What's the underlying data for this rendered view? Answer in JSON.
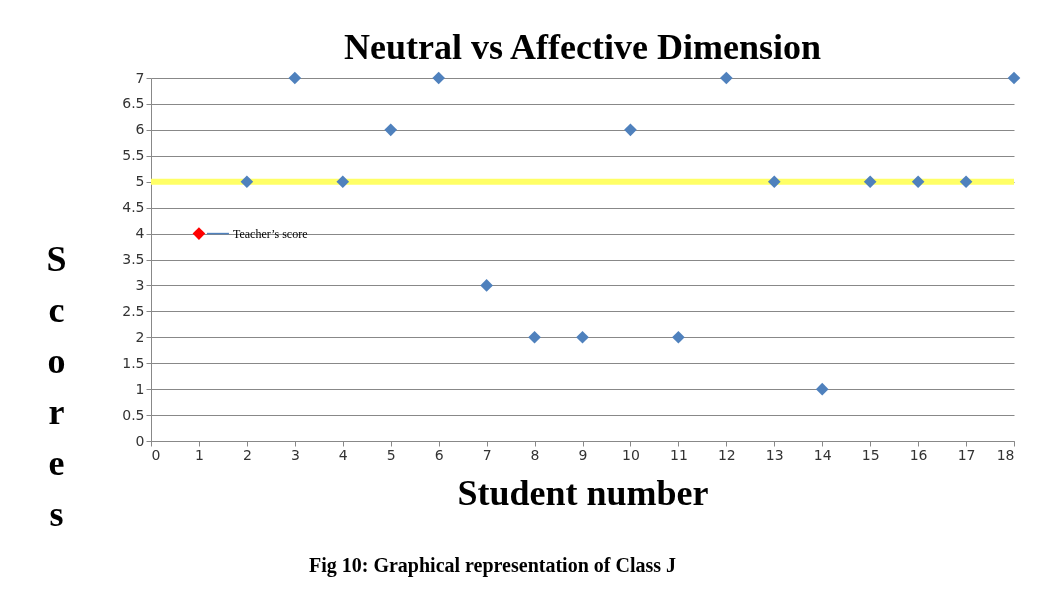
{
  "chart_data": {
    "type": "scatter",
    "title": "Neutral vs Affective Dimension",
    "xlabel": "Student number",
    "ylabel": "Scores",
    "series": [
      {
        "color": "#ff0000",
        "x": [
          1
        ],
        "values": [
          4
        ]
      },
      {
        "color": "#4f81bd",
        "x": [
          2,
          3,
          4,
          5,
          6,
          7,
          8,
          9,
          10,
          11,
          12,
          13,
          14,
          15,
          16,
          17,
          18
        ],
        "values": [
          5,
          7,
          5,
          6,
          7,
          3,
          2,
          2,
          6,
          2,
          7,
          5,
          1,
          5,
          5,
          5,
          7
        ]
      }
    ],
    "xlim": [
      0,
      18
    ],
    "xticks": [
      0,
      1,
      2,
      3,
      4,
      5,
      6,
      7,
      8,
      9,
      10,
      11,
      12,
      13,
      14,
      15,
      16,
      17,
      18
    ],
    "ylim": [
      0,
      7
    ],
    "yticks": [
      0,
      0.5,
      1,
      1.5,
      2,
      2.5,
      3,
      3.5,
      4,
      4.5,
      5,
      5.5,
      6,
      6.5,
      7
    ],
    "grid": "y",
    "marker": "diamond",
    "ref_lines": [
      {
        "axis": "y",
        "value": 5,
        "color": "#ffff66"
      }
    ],
    "annotations": [
      {
        "text": "Teacher’s score",
        "x": 1,
        "y": 4
      },
      "Fig 10: Graphical representation of Class J"
    ]
  }
}
